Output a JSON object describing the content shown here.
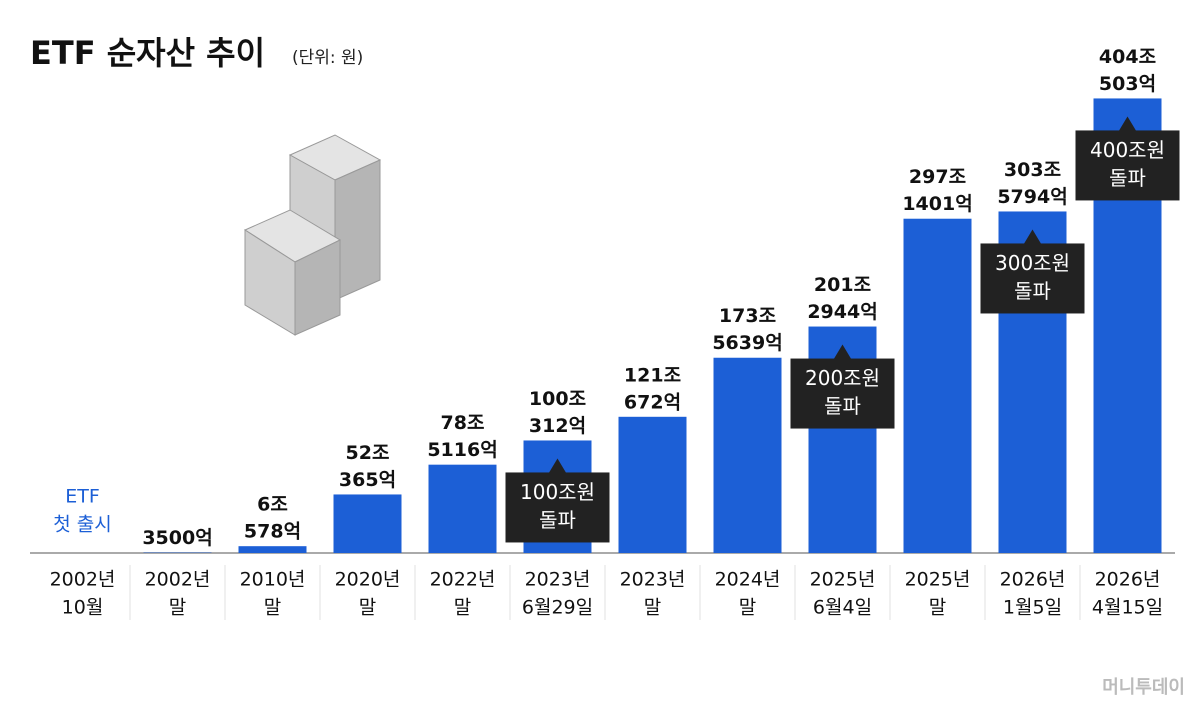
{
  "chart_data": {
    "type": "bar",
    "title": "ETF 순자산 추이",
    "subtitle": "(단위: 원)",
    "categories": [
      [
        "2002년",
        "10월"
      ],
      [
        "2002년",
        "말"
      ],
      [
        "2010년",
        "말"
      ],
      [
        "2020년",
        "말"
      ],
      [
        "2022년",
        "말"
      ],
      [
        "2023년",
        "6월29일"
      ],
      [
        "2023년",
        "말"
      ],
      [
        "2024년",
        "말"
      ],
      [
        "2025년",
        "6월4일"
      ],
      [
        "2025년",
        "말"
      ],
      [
        "2026년",
        "1월5일"
      ],
      [
        "2026년",
        "4월15일"
      ]
    ],
    "values": [
      null,
      0.35,
      6.0578,
      52.0365,
      78.5116,
      100.0312,
      121.0672,
      173.5639,
      201.2944,
      297.1401,
      303.5794,
      404.0503
    ],
    "value_labels": [
      null,
      [
        "3500억"
      ],
      [
        "6조",
        "578억"
      ],
      [
        "52조",
        "365억"
      ],
      [
        "78조",
        "5116억"
      ],
      [
        "100조",
        "312억"
      ],
      [
        "121조",
        "672억"
      ],
      [
        "173조",
        "5639억"
      ],
      [
        "201조",
        "2944억"
      ],
      [
        "297조",
        "1401억"
      ],
      [
        "303조",
        "5794억"
      ],
      [
        "404조",
        "503억"
      ]
    ],
    "notes": [
      [
        "ETF",
        "첫 출시"
      ],
      null,
      null,
      null,
      null,
      null,
      null,
      null,
      null,
      null,
      null,
      null
    ],
    "callouts": [
      null,
      null,
      null,
      null,
      null,
      [
        "100조원",
        "돌파"
      ],
      null,
      null,
      [
        "200조원",
        "돌파"
      ],
      null,
      [
        "300조원",
        "돌파"
      ],
      [
        "400조원",
        "돌파"
      ]
    ],
    "color": "#1c5fd6",
    "ylim": [
      0,
      400
    ],
    "source": "머니투데이"
  }
}
